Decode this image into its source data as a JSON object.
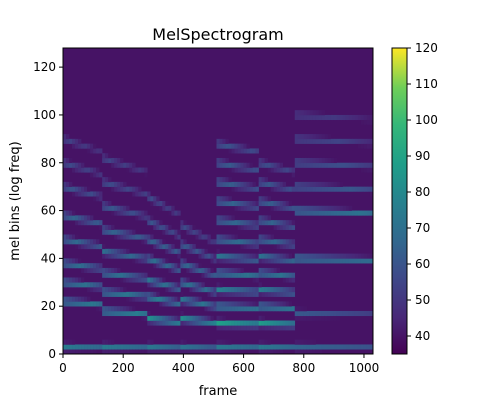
{
  "chart_data": {
    "type": "heatmap",
    "title": "MelSpectrogram",
    "xlabel": "frame",
    "ylabel": "mel bins (log freq)",
    "xlim": [
      0,
      1030
    ],
    "ylim": [
      0,
      128
    ],
    "x_ticks": [
      "0",
      "200",
      "400",
      "600",
      "800",
      "1000"
    ],
    "y_ticks": [
      "0",
      "20",
      "40",
      "60",
      "80",
      "100",
      "120"
    ],
    "colorbar": {
      "range": [
        35,
        120
      ],
      "ticks": [
        "40",
        "50",
        "60",
        "70",
        "80",
        "90",
        "100",
        "110",
        "120"
      ],
      "colormap": "viridis"
    },
    "segments": [
      {
        "frames": [
          0,
          130
        ],
        "bands": [
          [
            3,
            8,
            75
          ],
          [
            22,
            7,
            78
          ],
          [
            30,
            10,
            74
          ],
          [
            38,
            14,
            72
          ],
          [
            48,
            18,
            70
          ],
          [
            58,
            21,
            68
          ],
          [
            70,
            24,
            62
          ],
          [
            80,
            27,
            58
          ],
          [
            90,
            30,
            55
          ]
        ],
        "decay": 0.15
      },
      {
        "frames": [
          130,
          280
        ],
        "bands": [
          [
            3,
            8,
            75
          ],
          [
            18,
            6,
            80
          ],
          [
            26,
            10,
            76
          ],
          [
            34,
            13,
            73
          ],
          [
            43,
            17,
            71
          ],
          [
            52,
            20,
            68
          ],
          [
            62,
            23,
            63
          ],
          [
            72,
            26,
            59
          ],
          [
            82,
            28,
            56
          ]
        ],
        "decay": 0.18
      },
      {
        "frames": [
          280,
          390
        ],
        "bands": [
          [
            3,
            8,
            74
          ],
          [
            15,
            5,
            86
          ],
          [
            24,
            8,
            78
          ],
          [
            31,
            10,
            75
          ],
          [
            40,
            13,
            72
          ],
          [
            48,
            15,
            68
          ],
          [
            56,
            18,
            62
          ],
          [
            66,
            20,
            58
          ]
        ],
        "decay": 0.3
      },
      {
        "frames": [
          390,
          510
        ],
        "bands": [
          [
            3,
            8,
            72
          ],
          [
            15,
            5,
            84
          ],
          [
            23,
            8,
            76
          ],
          [
            30,
            10,
            73
          ],
          [
            38,
            12,
            69
          ],
          [
            46,
            15,
            64
          ],
          [
            54,
            18,
            58
          ]
        ],
        "decay": 0.35
      },
      {
        "frames": [
          510,
          650
        ],
        "bands": [
          [
            3,
            8,
            74
          ],
          [
            13,
            5,
            90
          ],
          [
            20,
            7,
            80
          ],
          [
            27,
            9,
            78
          ],
          [
            34,
            11,
            76
          ],
          [
            41,
            13,
            74
          ],
          [
            48,
            15,
            72
          ],
          [
            56,
            17,
            70
          ],
          [
            64,
            19,
            68
          ],
          [
            72,
            21,
            66
          ],
          [
            80,
            23,
            64
          ],
          [
            88,
            25,
            62
          ]
        ],
        "decay": 0.1
      },
      {
        "frames": [
          650,
          770
        ],
        "bands": [
          [
            3,
            8,
            74
          ],
          [
            13,
            5,
            88
          ],
          [
            20,
            7,
            79
          ],
          [
            27,
            9,
            77
          ],
          [
            34,
            11,
            75
          ],
          [
            41,
            13,
            73
          ],
          [
            48,
            15,
            70
          ],
          [
            56,
            17,
            68
          ],
          [
            64,
            19,
            66
          ],
          [
            72,
            21,
            63
          ],
          [
            80,
            23,
            60
          ]
        ],
        "decay": 0.12
      },
      {
        "frames": [
          770,
          1030
        ],
        "bands": [
          [
            3,
            8,
            66
          ],
          [
            17,
            6,
            62
          ],
          [
            40,
            20,
            78
          ],
          [
            60,
            30,
            76
          ],
          [
            70,
            35,
            65
          ],
          [
            80,
            40,
            62
          ],
          [
            90,
            45,
            58
          ],
          [
            100,
            50,
            54
          ]
        ],
        "decay": 0.05
      }
    ],
    "background_db": 40
  }
}
